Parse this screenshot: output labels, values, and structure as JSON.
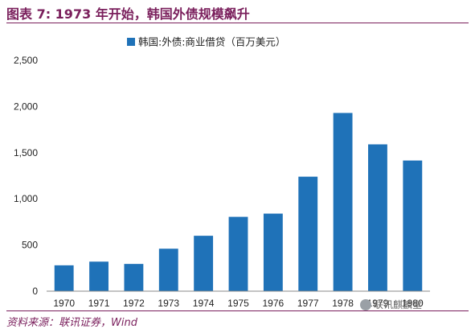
{
  "figure_title": "图表 7: 1973 年开始，韩国外债规模飙升",
  "source_note": "资料来源：联讯证券，Wind",
  "watermark_text": "联讯麒麟堂",
  "colors": {
    "bar": "#1f72b8",
    "title": "#7a1f5c"
  },
  "chart_data": {
    "type": "bar",
    "categories": [
      "1970",
      "1971",
      "1972",
      "1973",
      "1974",
      "1975",
      "1976",
      "1977",
      "1978",
      "1979",
      "1980"
    ],
    "series": [
      {
        "name": "韩国:外债:商业借贷（百万美元）",
        "values": [
          280,
          320,
          295,
          460,
          600,
          805,
          840,
          1240,
          1930,
          1590,
          1415
        ]
      }
    ],
    "yticks": [
      "0",
      "500",
      "1,000",
      "1,500",
      "2,000",
      "2,500"
    ],
    "ylim": [
      0,
      2500
    ],
    "grid": false,
    "legend_position": "top"
  }
}
